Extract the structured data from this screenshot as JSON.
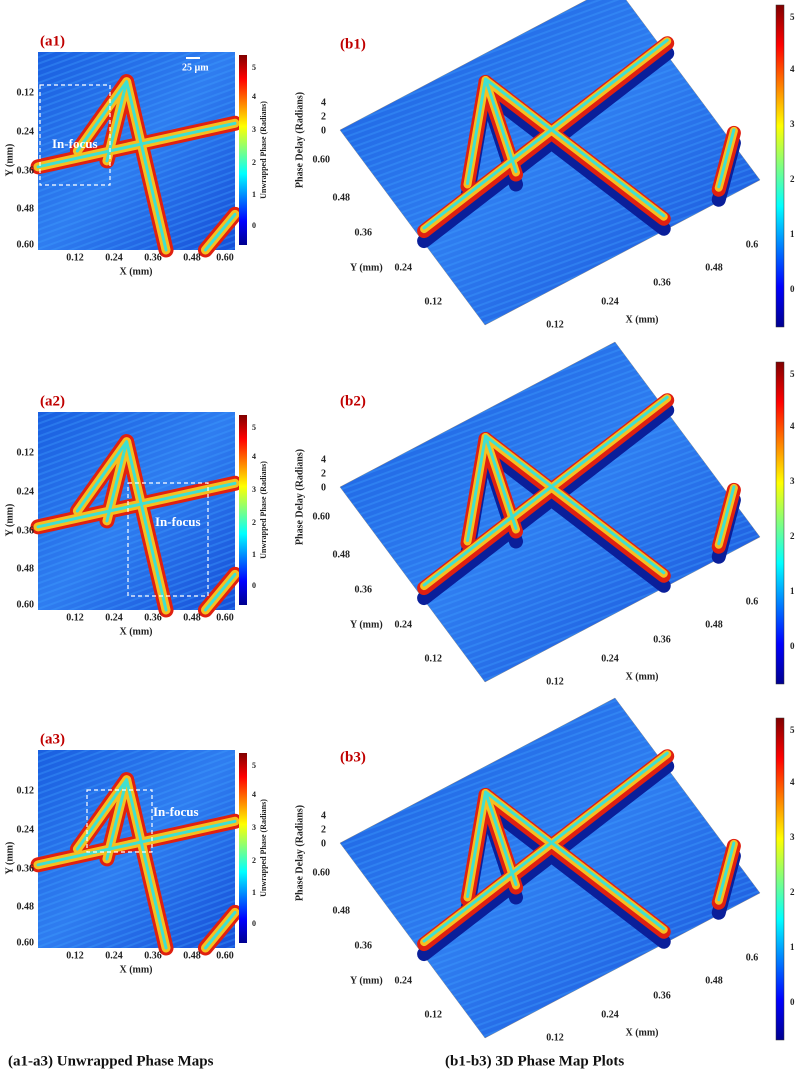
{
  "left_panels": [
    {
      "label": "(a1)",
      "scale_bar": "25 µm",
      "focus": "In-focus",
      "ylabel": "Y (mm)",
      "xlabel": "X (mm)",
      "yticks": [
        "0.12",
        "0.24",
        "0.36",
        "0.48",
        "0.60"
      ],
      "xticks": [
        "0.12",
        "0.24",
        "0.36",
        "0.48",
        "0.60"
      ],
      "colorbar_label": "Unwrapped Phase (Radians)",
      "colorbar_ticks": [
        "0",
        "1",
        "2",
        "3",
        "4",
        "5"
      ]
    },
    {
      "label": "(a2)",
      "focus": "In-focus",
      "ylabel": "Y (mm)",
      "xlabel": "X (mm)",
      "yticks": [
        "0.12",
        "0.24",
        "0.36",
        "0.48",
        "0.60"
      ],
      "xticks": [
        "0.12",
        "0.24",
        "0.36",
        "0.48",
        "0.60"
      ],
      "colorbar_label": "Unwrapped Phase (Radians)",
      "colorbar_ticks": [
        "0",
        "1",
        "2",
        "3",
        "4",
        "5"
      ]
    },
    {
      "label": "(a3)",
      "focus": "In-focus",
      "ylabel": "Y (mm)",
      "xlabel": "X (mm)",
      "yticks": [
        "0.12",
        "0.24",
        "0.36",
        "0.48",
        "0.60"
      ],
      "xticks": [
        "0.12",
        "0.24",
        "0.36",
        "0.48",
        "0.60"
      ],
      "colorbar_label": "Unwrapped Phase (Radians)",
      "colorbar_ticks": [
        "0",
        "1",
        "2",
        "3",
        "4",
        "5"
      ]
    }
  ],
  "right_panels": [
    {
      "label": "(b1)",
      "zlabel": "Phase Delay (Radians)",
      "zticks": [
        "0",
        "2",
        "4"
      ],
      "ylabel": "Y (mm)",
      "xlabel": "X (mm)",
      "yticks": [
        "0.60",
        "0.48",
        "0.36",
        "0.24",
        "0.12"
      ],
      "xticks": [
        "0.12",
        "0.24",
        "0.36",
        "0.48",
        "0.6"
      ],
      "colorbar_ticks": [
        "0",
        "1",
        "2",
        "3",
        "4",
        "5"
      ]
    },
    {
      "label": "(b2)",
      "zlabel": "Phase Delay (Radians)",
      "zticks": [
        "0",
        "2",
        "4"
      ],
      "ylabel": "Y (mm)",
      "xlabel": "X (mm)",
      "yticks": [
        "0.60",
        "0.48",
        "0.36",
        "0.24",
        "0.12"
      ],
      "xticks": [
        "0.12",
        "0.24",
        "0.36",
        "0.48",
        "0.6"
      ],
      "colorbar_ticks": [
        "0",
        "1",
        "2",
        "3",
        "4",
        "5"
      ]
    },
    {
      "label": "(b3)",
      "zlabel": "Phase Delay (Radians)",
      "zticks": [
        "0",
        "2",
        "4"
      ],
      "ylabel": "Y (mm)",
      "xlabel": "X (mm)",
      "yticks": [
        "0.60",
        "0.48",
        "0.36",
        "0.24",
        "0.12"
      ],
      "xticks": [
        "0.12",
        "0.24",
        "0.36",
        "0.48",
        "0.6"
      ],
      "colorbar_ticks": [
        "0",
        "1",
        "2",
        "3",
        "4",
        "5"
      ]
    }
  ],
  "captions": [
    "(a1-a3) Unwrapped Phase Maps",
    "(b1-b3) 3D Phase Map Plots"
  ]
}
